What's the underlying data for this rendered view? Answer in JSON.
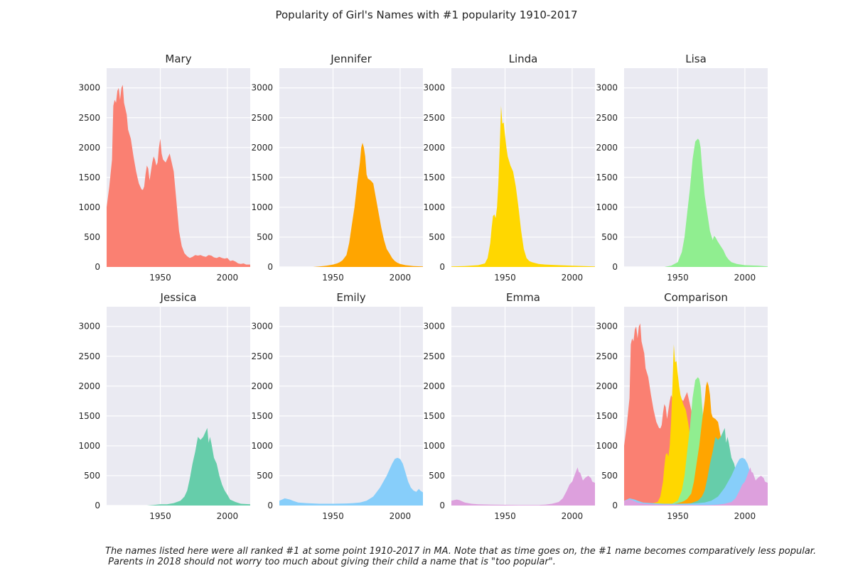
{
  "title": "Popularity of Girl's Names with #1 popularity 1910-2017",
  "footnote": {
    "line1": "The names listed here were all ranked #1 at some point 1910-2017 in MA. Note that as time goes on, the #1 name becomes comparatively less popular.",
    "line2": " Parents in 2018 should not worry too much about giving their child a name that is \"too popular\"."
  },
  "chart_data": {
    "type": "area",
    "panel_titles": [
      "Mary",
      "Jennifer",
      "Linda",
      "Lisa",
      "Jessica",
      "Emily",
      "Emma",
      "Comparison"
    ],
    "xlim": [
      1910,
      2017
    ],
    "ylim": [
      0,
      3330
    ],
    "xticks": [
      1950,
      2000
    ],
    "yticks": [
      0,
      500,
      1000,
      1500,
      2000,
      2500,
      3000
    ],
    "grid": true,
    "comparison_order": [
      "Mary",
      "Linda",
      "Lisa",
      "Jennifer",
      "Jessica",
      "Emily",
      "Emma"
    ],
    "series": [
      {
        "name": "Mary",
        "color": "#fa8072",
        "points": [
          [
            1910,
            1000
          ],
          [
            1912,
            1350
          ],
          [
            1914,
            1800
          ],
          [
            1915,
            2700
          ],
          [
            1916,
            2800
          ],
          [
            1917,
            2750
          ],
          [
            1918,
            2950
          ],
          [
            1919,
            3000
          ],
          [
            1920,
            2800
          ],
          [
            1921,
            3000
          ],
          [
            1922,
            3050
          ],
          [
            1923,
            2750
          ],
          [
            1925,
            2550
          ],
          [
            1926,
            2300
          ],
          [
            1928,
            2150
          ],
          [
            1930,
            1850
          ],
          [
            1932,
            1600
          ],
          [
            1934,
            1400
          ],
          [
            1936,
            1300
          ],
          [
            1937,
            1290
          ],
          [
            1938,
            1350
          ],
          [
            1939,
            1550
          ],
          [
            1940,
            1700
          ],
          [
            1941,
            1650
          ],
          [
            1942,
            1450
          ],
          [
            1943,
            1600
          ],
          [
            1944,
            1750
          ],
          [
            1945,
            1850
          ],
          [
            1946,
            1800
          ],
          [
            1947,
            1700
          ],
          [
            1948,
            1750
          ],
          [
            1949,
            2000
          ],
          [
            1950,
            2150
          ],
          [
            1951,
            1900
          ],
          [
            1952,
            1800
          ],
          [
            1954,
            1750
          ],
          [
            1956,
            1850
          ],
          [
            1957,
            1900
          ],
          [
            1958,
            1800
          ],
          [
            1960,
            1600
          ],
          [
            1962,
            1100
          ],
          [
            1964,
            600
          ],
          [
            1966,
            350
          ],
          [
            1968,
            230
          ],
          [
            1970,
            180
          ],
          [
            1972,
            150
          ],
          [
            1974,
            170
          ],
          [
            1976,
            200
          ],
          [
            1978,
            190
          ],
          [
            1980,
            200
          ],
          [
            1982,
            180
          ],
          [
            1984,
            170
          ],
          [
            1986,
            200
          ],
          [
            1988,
            190
          ],
          [
            1990,
            160
          ],
          [
            1992,
            150
          ],
          [
            1994,
            170
          ],
          [
            1996,
            150
          ],
          [
            1998,
            140
          ],
          [
            2000,
            150
          ],
          [
            2002,
            100
          ],
          [
            2004,
            110
          ],
          [
            2006,
            90
          ],
          [
            2008,
            60
          ],
          [
            2010,
            50
          ],
          [
            2012,
            60
          ],
          [
            2014,
            40
          ],
          [
            2017,
            40
          ]
        ]
      },
      {
        "name": "Jennifer",
        "color": "#ffa500",
        "points": [
          [
            1910,
            0
          ],
          [
            1935,
            0
          ],
          [
            1940,
            10
          ],
          [
            1945,
            20
          ],
          [
            1950,
            40
          ],
          [
            1953,
            60
          ],
          [
            1955,
            80
          ],
          [
            1957,
            110
          ],
          [
            1960,
            200
          ],
          [
            1962,
            400
          ],
          [
            1964,
            700
          ],
          [
            1966,
            1000
          ],
          [
            1968,
            1400
          ],
          [
            1970,
            1750
          ],
          [
            1971,
            2000
          ],
          [
            1972,
            2080
          ],
          [
            1973,
            2000
          ],
          [
            1974,
            1850
          ],
          [
            1975,
            1550
          ],
          [
            1976,
            1480
          ],
          [
            1978,
            1450
          ],
          [
            1980,
            1400
          ],
          [
            1982,
            1150
          ],
          [
            1984,
            900
          ],
          [
            1986,
            650
          ],
          [
            1988,
            450
          ],
          [
            1990,
            300
          ],
          [
            1992,
            230
          ],
          [
            1994,
            150
          ],
          [
            1996,
            100
          ],
          [
            1998,
            70
          ],
          [
            2000,
            50
          ],
          [
            2004,
            30
          ],
          [
            2010,
            15
          ],
          [
            2017,
            10
          ]
        ]
      },
      {
        "name": "Linda",
        "color": "#ffd700",
        "points": [
          [
            1910,
            10
          ],
          [
            1920,
            15
          ],
          [
            1930,
            30
          ],
          [
            1935,
            60
          ],
          [
            1937,
            150
          ],
          [
            1939,
            400
          ],
          [
            1940,
            650
          ],
          [
            1941,
            850
          ],
          [
            1942,
            880
          ],
          [
            1943,
            820
          ],
          [
            1944,
            1000
          ],
          [
            1945,
            1400
          ],
          [
            1946,
            2000
          ],
          [
            1947,
            2700
          ],
          [
            1948,
            2400
          ],
          [
            1949,
            2420
          ],
          [
            1950,
            2200
          ],
          [
            1951,
            2000
          ],
          [
            1952,
            1850
          ],
          [
            1954,
            1700
          ],
          [
            1956,
            1600
          ],
          [
            1958,
            1350
          ],
          [
            1960,
            1000
          ],
          [
            1962,
            600
          ],
          [
            1964,
            300
          ],
          [
            1966,
            150
          ],
          [
            1968,
            100
          ],
          [
            1970,
            80
          ],
          [
            1975,
            50
          ],
          [
            1980,
            40
          ],
          [
            1990,
            30
          ],
          [
            2000,
            20
          ],
          [
            2017,
            10
          ]
        ]
      },
      {
        "name": "Lisa",
        "color": "#90ee90",
        "points": [
          [
            1910,
            0
          ],
          [
            1940,
            0
          ],
          [
            1945,
            20
          ],
          [
            1950,
            80
          ],
          [
            1953,
            250
          ],
          [
            1955,
            500
          ],
          [
            1957,
            900
          ],
          [
            1959,
            1300
          ],
          [
            1961,
            1800
          ],
          [
            1963,
            2100
          ],
          [
            1965,
            2150
          ],
          [
            1966,
            2120
          ],
          [
            1967,
            2000
          ],
          [
            1968,
            1700
          ],
          [
            1970,
            1200
          ],
          [
            1972,
            900
          ],
          [
            1974,
            600
          ],
          [
            1976,
            450
          ],
          [
            1977,
            520
          ],
          [
            1978,
            500
          ],
          [
            1980,
            420
          ],
          [
            1982,
            350
          ],
          [
            1984,
            280
          ],
          [
            1986,
            180
          ],
          [
            1988,
            120
          ],
          [
            1990,
            80
          ],
          [
            1994,
            50
          ],
          [
            2000,
            30
          ],
          [
            2010,
            20
          ],
          [
            2017,
            10
          ]
        ]
      },
      {
        "name": "Jessica",
        "color": "#66cdaa",
        "points": [
          [
            1910,
            0
          ],
          [
            1940,
            0
          ],
          [
            1945,
            10
          ],
          [
            1950,
            20
          ],
          [
            1955,
            20
          ],
          [
            1960,
            40
          ],
          [
            1965,
            80
          ],
          [
            1968,
            150
          ],
          [
            1970,
            250
          ],
          [
            1972,
            450
          ],
          [
            1974,
            700
          ],
          [
            1976,
            900
          ],
          [
            1978,
            1150
          ],
          [
            1980,
            1100
          ],
          [
            1982,
            1150
          ],
          [
            1984,
            1250
          ],
          [
            1985,
            1300
          ],
          [
            1986,
            1050
          ],
          [
            1987,
            1150
          ],
          [
            1988,
            1050
          ],
          [
            1990,
            800
          ],
          [
            1992,
            700
          ],
          [
            1994,
            500
          ],
          [
            1996,
            350
          ],
          [
            1998,
            250
          ],
          [
            2000,
            180
          ],
          [
            2002,
            100
          ],
          [
            2006,
            60
          ],
          [
            2010,
            30
          ],
          [
            2017,
            20
          ]
        ]
      },
      {
        "name": "Emily",
        "color": "#87cefa",
        "points": [
          [
            1910,
            80
          ],
          [
            1912,
            100
          ],
          [
            1914,
            120
          ],
          [
            1916,
            110
          ],
          [
            1918,
            100
          ],
          [
            1920,
            80
          ],
          [
            1924,
            50
          ],
          [
            1930,
            40
          ],
          [
            1940,
            30
          ],
          [
            1950,
            30
          ],
          [
            1960,
            35
          ],
          [
            1965,
            40
          ],
          [
            1970,
            50
          ],
          [
            1975,
            80
          ],
          [
            1980,
            150
          ],
          [
            1985,
            300
          ],
          [
            1990,
            500
          ],
          [
            1994,
            700
          ],
          [
            1996,
            780
          ],
          [
            1998,
            800
          ],
          [
            2000,
            780
          ],
          [
            2002,
            700
          ],
          [
            2004,
            550
          ],
          [
            2006,
            400
          ],
          [
            2008,
            300
          ],
          [
            2010,
            250
          ],
          [
            2012,
            230
          ],
          [
            2014,
            280
          ],
          [
            2015,
            250
          ],
          [
            2017,
            220
          ]
        ]
      },
      {
        "name": "Emma",
        "color": "#dda0dd",
        "points": [
          [
            1910,
            80
          ],
          [
            1912,
            90
          ],
          [
            1914,
            100
          ],
          [
            1916,
            90
          ],
          [
            1918,
            70
          ],
          [
            1920,
            50
          ],
          [
            1925,
            30
          ],
          [
            1930,
            20
          ],
          [
            1940,
            15
          ],
          [
            1960,
            10
          ],
          [
            1975,
            10
          ],
          [
            1980,
            15
          ],
          [
            1985,
            30
          ],
          [
            1990,
            60
          ],
          [
            1993,
            120
          ],
          [
            1996,
            250
          ],
          [
            1998,
            350
          ],
          [
            2000,
            400
          ],
          [
            2002,
            520
          ],
          [
            2004,
            640
          ],
          [
            2005,
            560
          ],
          [
            2006,
            550
          ],
          [
            2008,
            420
          ],
          [
            2010,
            470
          ],
          [
            2012,
            500
          ],
          [
            2014,
            460
          ],
          [
            2015,
            400
          ],
          [
            2017,
            380
          ]
        ]
      }
    ]
  }
}
